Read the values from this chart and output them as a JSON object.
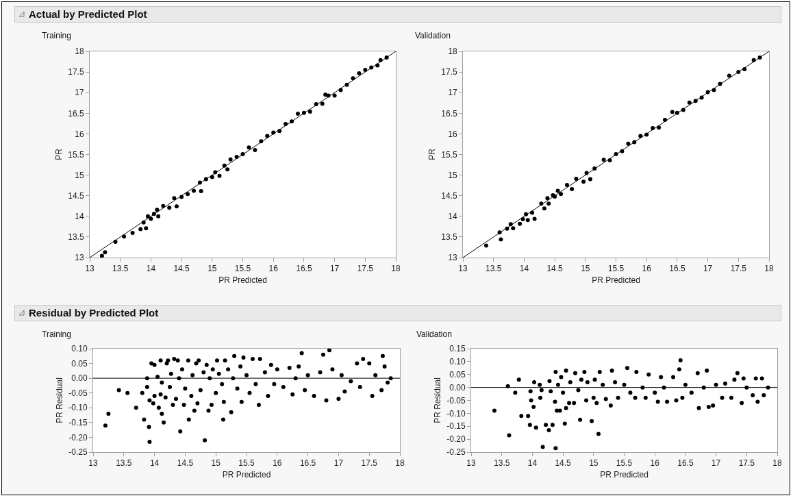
{
  "chart_data": [
    {
      "type": "scatter",
      "title": "Actual by Predicted Plot",
      "subtitle": "Training",
      "xlabel": "PR Predicted",
      "ylabel": "PR",
      "marker": "circle",
      "xlim": [
        13,
        18
      ],
      "ylim": [
        13,
        18
      ],
      "xticks": [
        13,
        13.5,
        14,
        14.5,
        15,
        15.5,
        16,
        16.5,
        17,
        17.5,
        18
      ],
      "yticks": [
        13,
        13.5,
        14,
        14.5,
        15,
        15.5,
        16,
        16.5,
        17,
        17.5,
        18
      ],
      "series": [
        {
          "color": "#000000",
          "x": [
            13.2,
            13.25,
            13.42,
            13.56,
            13.7,
            13.83,
            13.88,
            13.92,
            13.95,
            14.0,
            14.05,
            14.1,
            14.12,
            14.2,
            14.3,
            14.38,
            14.42,
            14.5,
            14.6,
            14.7,
            14.8,
            14.82,
            14.9,
            15.0,
            15.05,
            15.12,
            15.2,
            15.25,
            15.3,
            15.4,
            15.5,
            15.6,
            15.7,
            15.8,
            15.9,
            16.0,
            16.1,
            16.2,
            16.3,
            16.4,
            16.5,
            16.6,
            16.7,
            16.8,
            16.85,
            16.9,
            17.0,
            17.1,
            17.2,
            17.3,
            17.4,
            17.5,
            17.6,
            17.7,
            17.75,
            17.85
          ],
          "values": [
            13.04,
            13.13,
            13.38,
            13.51,
            13.6,
            13.69,
            13.85,
            13.71,
            14.0,
            13.94,
            14.06,
            14.16,
            14.0,
            14.25,
            14.21,
            14.44,
            14.24,
            14.47,
            14.54,
            14.62,
            14.82,
            14.61,
            14.9,
            14.95,
            15.07,
            14.98,
            15.23,
            15.14,
            15.38,
            15.44,
            15.51,
            15.67,
            15.61,
            15.82,
            15.95,
            16.03,
            16.07,
            16.24,
            16.3,
            16.49,
            16.51,
            16.54,
            16.72,
            16.73,
            16.95,
            16.93,
            16.93,
            17.06,
            17.19,
            17.35,
            17.47,
            17.55,
            17.61,
            17.66,
            17.79,
            17.85
          ]
        },
        {
          "type": "line",
          "color": "#000000",
          "marker": "none",
          "x": [
            13,
            18
          ],
          "values": [
            13,
            18
          ]
        }
      ]
    },
    {
      "type": "scatter",
      "subtitle": "Validation",
      "xlabel": "PR Predicted",
      "ylabel": "PR",
      "marker": "circle",
      "xlim": [
        13,
        18
      ],
      "ylim": [
        13,
        18
      ],
      "xticks": [
        13,
        13.5,
        14,
        14.5,
        15,
        15.5,
        16,
        16.5,
        17,
        17.5,
        18
      ],
      "yticks": [
        13,
        13.5,
        14,
        14.5,
        15,
        15.5,
        16,
        16.5,
        17,
        17.5,
        18
      ],
      "series": [
        {
          "color": "#000000",
          "x": [
            13.38,
            13.6,
            13.62,
            13.72,
            13.78,
            13.82,
            13.93,
            13.98,
            14.03,
            14.06,
            14.13,
            14.17,
            14.28,
            14.33,
            14.38,
            14.4,
            14.47,
            14.5,
            14.55,
            14.6,
            14.7,
            14.78,
            14.85,
            14.97,
            15.02,
            15.08,
            15.15,
            15.3,
            15.4,
            15.5,
            15.6,
            15.7,
            15.8,
            15.9,
            16.0,
            16.1,
            16.2,
            16.3,
            16.42,
            16.5,
            16.6,
            16.7,
            16.8,
            16.9,
            17.0,
            17.1,
            17.2,
            17.35,
            17.5,
            17.6,
            17.75,
            17.85
          ],
          "values": [
            13.29,
            13.61,
            13.44,
            13.7,
            13.81,
            13.71,
            13.82,
            13.93,
            14.05,
            13.91,
            14.09,
            13.94,
            14.31,
            14.19,
            14.44,
            14.31,
            14.51,
            14.48,
            14.62,
            14.54,
            14.76,
            14.66,
            14.91,
            14.84,
            15.05,
            14.9,
            15.16,
            15.37,
            15.36,
            15.51,
            15.58,
            15.76,
            15.8,
            15.95,
            15.98,
            16.14,
            16.15,
            16.34,
            16.53,
            16.51,
            16.58,
            16.76,
            16.8,
            16.88,
            17.01,
            17.06,
            17.21,
            17.41,
            17.5,
            17.57,
            17.79,
            17.85
          ]
        },
        {
          "type": "line",
          "color": "#000000",
          "marker": "none",
          "x": [
            13,
            18
          ],
          "values": [
            13,
            18
          ]
        }
      ]
    },
    {
      "type": "scatter",
      "title": "Residual by Predicted Plot",
      "subtitle": "Training",
      "xlabel": "PR Predicted",
      "ylabel": "PR Residual",
      "marker": "circle",
      "xlim": [
        13,
        18
      ],
      "ylim": [
        -0.25,
        0.1
      ],
      "xticks": [
        13,
        13.5,
        14,
        14.5,
        15,
        15.5,
        16,
        16.5,
        17,
        17.5,
        18
      ],
      "yticks": [
        {
          "value": -0.25,
          "label": "-0.25"
        },
        {
          "value": -0.2,
          "label": "-0.20"
        },
        {
          "value": -0.15,
          "label": "-0.15"
        },
        {
          "value": -0.1,
          "label": "-0.10"
        },
        {
          "value": -0.05,
          "label": "-0.05"
        },
        {
          "value": 0,
          "label": "0.00"
        },
        {
          "value": 0.05,
          "label": "0.05"
        },
        {
          "value": 0.1,
          "label": "0.10"
        }
      ],
      "ref_lines": [
        {
          "axis": "y",
          "value": 0,
          "color": "#000000"
        }
      ],
      "series": [
        {
          "color": "#000000",
          "x": [
            13.2,
            13.25,
            13.42,
            13.56,
            13.7,
            13.8,
            13.83,
            13.88,
            13.88,
            13.91,
            13.92,
            13.92,
            13.95,
            13.98,
            14.0,
            14.0,
            14.05,
            14.07,
            14.1,
            14.1,
            14.12,
            14.12,
            14.15,
            14.18,
            14.2,
            14.22,
            14.25,
            14.27,
            14.3,
            14.32,
            14.35,
            14.38,
            14.4,
            14.42,
            14.45,
            14.48,
            14.5,
            14.55,
            14.56,
            14.6,
            14.62,
            14.65,
            14.68,
            14.7,
            14.72,
            14.75,
            14.8,
            14.82,
            14.85,
            14.88,
            14.9,
            14.93,
            14.95,
            15.0,
            15.02,
            15.05,
            15.1,
            15.12,
            15.13,
            15.15,
            15.2,
            15.25,
            15.28,
            15.3,
            15.35,
            15.4,
            15.42,
            15.45,
            15.5,
            15.55,
            15.6,
            15.65,
            15.7,
            15.72,
            15.8,
            15.85,
            15.9,
            15.95,
            16.0,
            16.1,
            16.2,
            16.25,
            16.3,
            16.35,
            16.4,
            16.45,
            16.5,
            16.6,
            16.7,
            16.75,
            16.8,
            16.85,
            16.9,
            17.0,
            17.05,
            17.1,
            17.2,
            17.3,
            17.35,
            17.4,
            17.5,
            17.55,
            17.6,
            17.7,
            17.72,
            17.75,
            17.8,
            17.85
          ],
          "values": [
            -0.16,
            -0.12,
            -0.04,
            -0.05,
            -0.1,
            -0.05,
            -0.14,
            -0.03,
            0.0,
            -0.165,
            -0.215,
            -0.075,
            0.05,
            -0.085,
            -0.06,
            0.045,
            0.005,
            -0.1,
            -0.055,
            0.06,
            -0.12,
            -0.015,
            -0.15,
            -0.065,
            0.05,
            0.06,
            -0.03,
            0.015,
            -0.09,
            0.065,
            -0.07,
            0.06,
            0.0,
            -0.18,
            0.03,
            -0.09,
            -0.035,
            0.06,
            -0.14,
            -0.06,
            0.01,
            -0.11,
            0.05,
            -0.085,
            0.06,
            -0.04,
            0.02,
            -0.21,
            0.045,
            -0.11,
            0.0,
            -0.09,
            0.03,
            -0.05,
            0.06,
            0.015,
            -0.02,
            -0.14,
            -0.08,
            0.06,
            0.03,
            -0.115,
            0.0,
            0.075,
            -0.035,
            0.04,
            -0.08,
            0.07,
            0.01,
            -0.05,
            0.065,
            -0.02,
            -0.09,
            0.065,
            0.02,
            -0.06,
            0.045,
            -0.02,
            0.03,
            -0.03,
            0.035,
            -0.055,
            0.0,
            0.04,
            0.085,
            -0.04,
            0.01,
            -0.06,
            0.02,
            0.08,
            -0.075,
            0.095,
            0.03,
            -0.07,
            0.01,
            -0.045,
            -0.01,
            0.05,
            -0.03,
            0.065,
            0.05,
            -0.06,
            0.01,
            -0.04,
            0.075,
            0.04,
            -0.015,
            0.0
          ]
        }
      ]
    },
    {
      "type": "scatter",
      "subtitle": "Validation",
      "xlabel": "PR Predicted",
      "ylabel": "PR Residual",
      "marker": "circle",
      "xlim": [
        13,
        18
      ],
      "ylim": [
        -0.25,
        0.15
      ],
      "xticks": [
        13,
        13.5,
        14,
        14.5,
        15,
        15.5,
        16,
        16.5,
        17,
        17.5,
        18
      ],
      "yticks": [
        {
          "value": -0.25,
          "label": "-0.25"
        },
        {
          "value": -0.2,
          "label": "-0.20"
        },
        {
          "value": -0.15,
          "label": "-0.15"
        },
        {
          "value": -0.1,
          "label": "-0.10"
        },
        {
          "value": -0.05,
          "label": "-0.05"
        },
        {
          "value": 0,
          "label": "0.00"
        },
        {
          "value": 0.05,
          "label": "0.05"
        },
        {
          "value": 0.1,
          "label": "0.10"
        },
        {
          "value": 0.15,
          "label": "0.15"
        }
      ],
      "ref_lines": [
        {
          "axis": "y",
          "value": 0,
          "color": "#000000"
        }
      ],
      "series": [
        {
          "color": "#000000",
          "x": [
            13.38,
            13.6,
            13.62,
            13.72,
            13.78,
            13.82,
            13.93,
            13.96,
            13.97,
            13.98,
            14.02,
            14.03,
            14.06,
            14.12,
            14.13,
            14.15,
            14.17,
            14.22,
            14.27,
            14.28,
            14.3,
            14.33,
            14.37,
            14.38,
            14.38,
            14.4,
            14.42,
            14.45,
            14.47,
            14.5,
            14.53,
            14.55,
            14.55,
            14.6,
            14.62,
            14.68,
            14.7,
            14.75,
            14.78,
            14.8,
            14.85,
            14.88,
            14.9,
            14.97,
            15.0,
            15.02,
            15.05,
            15.08,
            15.1,
            15.15,
            15.2,
            15.28,
            15.3,
            15.35,
            15.4,
            15.5,
            15.55,
            15.6,
            15.68,
            15.7,
            15.8,
            15.85,
            15.9,
            16.0,
            16.05,
            16.1,
            16.15,
            16.2,
            16.3,
            16.35,
            16.4,
            16.42,
            16.45,
            16.5,
            16.6,
            16.7,
            16.72,
            16.8,
            16.85,
            16.88,
            16.95,
            17.0,
            17.1,
            17.15,
            17.25,
            17.3,
            17.35,
            17.42,
            17.45,
            17.5,
            17.6,
            17.65,
            17.68,
            17.75,
            17.78,
            17.85
          ],
          "values": [
            -0.09,
            0.005,
            -0.185,
            -0.02,
            0.03,
            -0.11,
            -0.11,
            -0.145,
            -0.015,
            -0.05,
            -0.075,
            0.02,
            -0.155,
            0.01,
            -0.04,
            -0.01,
            -0.23,
            -0.145,
            -0.165,
            0.025,
            -0.015,
            -0.145,
            -0.055,
            0.06,
            -0.235,
            -0.09,
            0.01,
            -0.09,
            0.04,
            -0.02,
            -0.14,
            0.065,
            -0.08,
            -0.06,
            0.02,
            -0.06,
            0.055,
            -0.01,
            -0.125,
            0.03,
            0.06,
            -0.05,
            0.02,
            -0.13,
            -0.04,
            0.03,
            -0.06,
            -0.18,
            0.06,
            0.01,
            -0.045,
            -0.07,
            0.065,
            0.02,
            -0.04,
            0.01,
            0.075,
            -0.02,
            -0.04,
            0.06,
            0.0,
            -0.04,
            0.05,
            -0.02,
            -0.055,
            0.04,
            0.0,
            -0.055,
            0.04,
            -0.05,
            0.07,
            0.105,
            -0.04,
            0.01,
            -0.02,
            0.055,
            -0.08,
            0.0,
            0.065,
            -0.075,
            -0.07,
            0.01,
            -0.04,
            0.015,
            -0.04,
            0.03,
            0.055,
            -0.06,
            0.035,
            0.0,
            -0.03,
            0.035,
            -0.055,
            0.035,
            -0.03,
            0.0
          ]
        }
      ]
    }
  ]
}
